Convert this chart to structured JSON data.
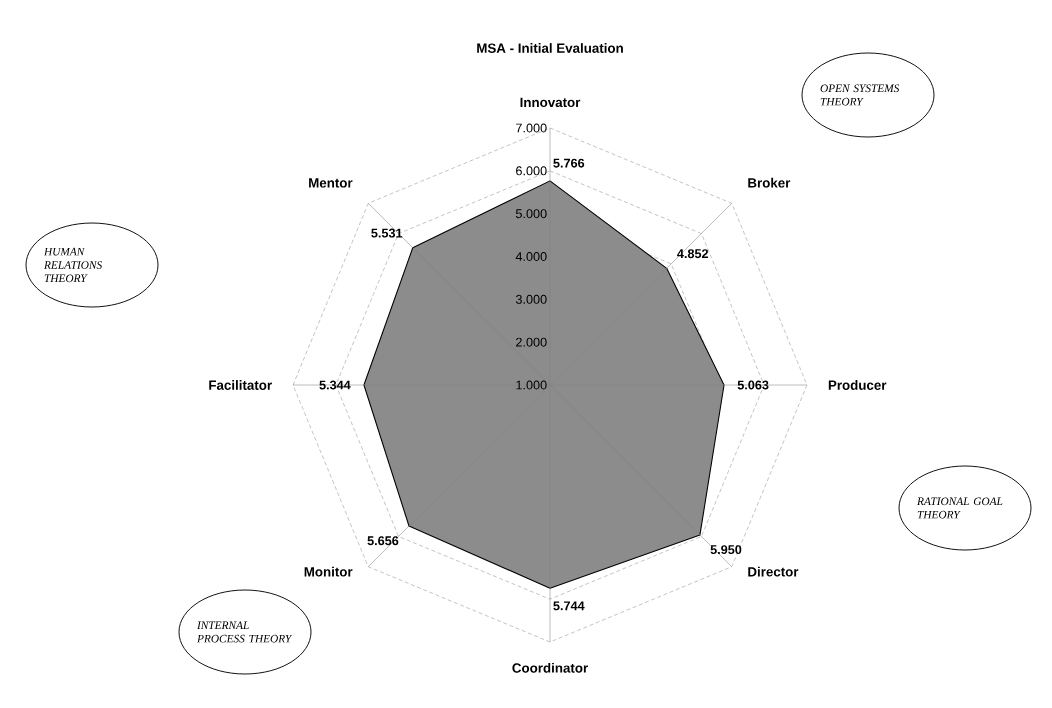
{
  "chart_data": {
    "type": "radar",
    "title": "MSA - Initial Evaluation",
    "categories": [
      "Innovator",
      "Broker",
      "Producer",
      "Director",
      "Coordinator",
      "Monitor",
      "Facilitator",
      "Mentor"
    ],
    "series": [
      {
        "color": "#8c8c8c",
        "values": [
          5.766,
          4.852,
          5.063,
          5.95,
          5.744,
          5.656,
          5.344,
          5.531
        ],
        "value_labels": [
          "5.766",
          "4.852",
          "5.063",
          "5.950",
          "5.744",
          "5.656",
          "5.344",
          "5.531"
        ]
      }
    ],
    "ylim": [
      1,
      7
    ],
    "yticks": [
      {
        "value": 1,
        "label": "1.000"
      },
      {
        "value": 2,
        "label": "2.000"
      },
      {
        "value": 3,
        "label": "3.000"
      },
      {
        "value": 4,
        "label": "4.000"
      },
      {
        "value": 5,
        "label": "5.000"
      },
      {
        "value": 6,
        "label": "6.000"
      },
      {
        "value": 7,
        "label": "7.000"
      }
    ],
    "grid": true,
    "annotations": [
      "OPEN SYSTEMS THEORY",
      "HUMAN RELATIONS THEORY",
      "RATIONAL GOAL THEORY",
      "INTERNAL PROCESS THEORY"
    ]
  }
}
